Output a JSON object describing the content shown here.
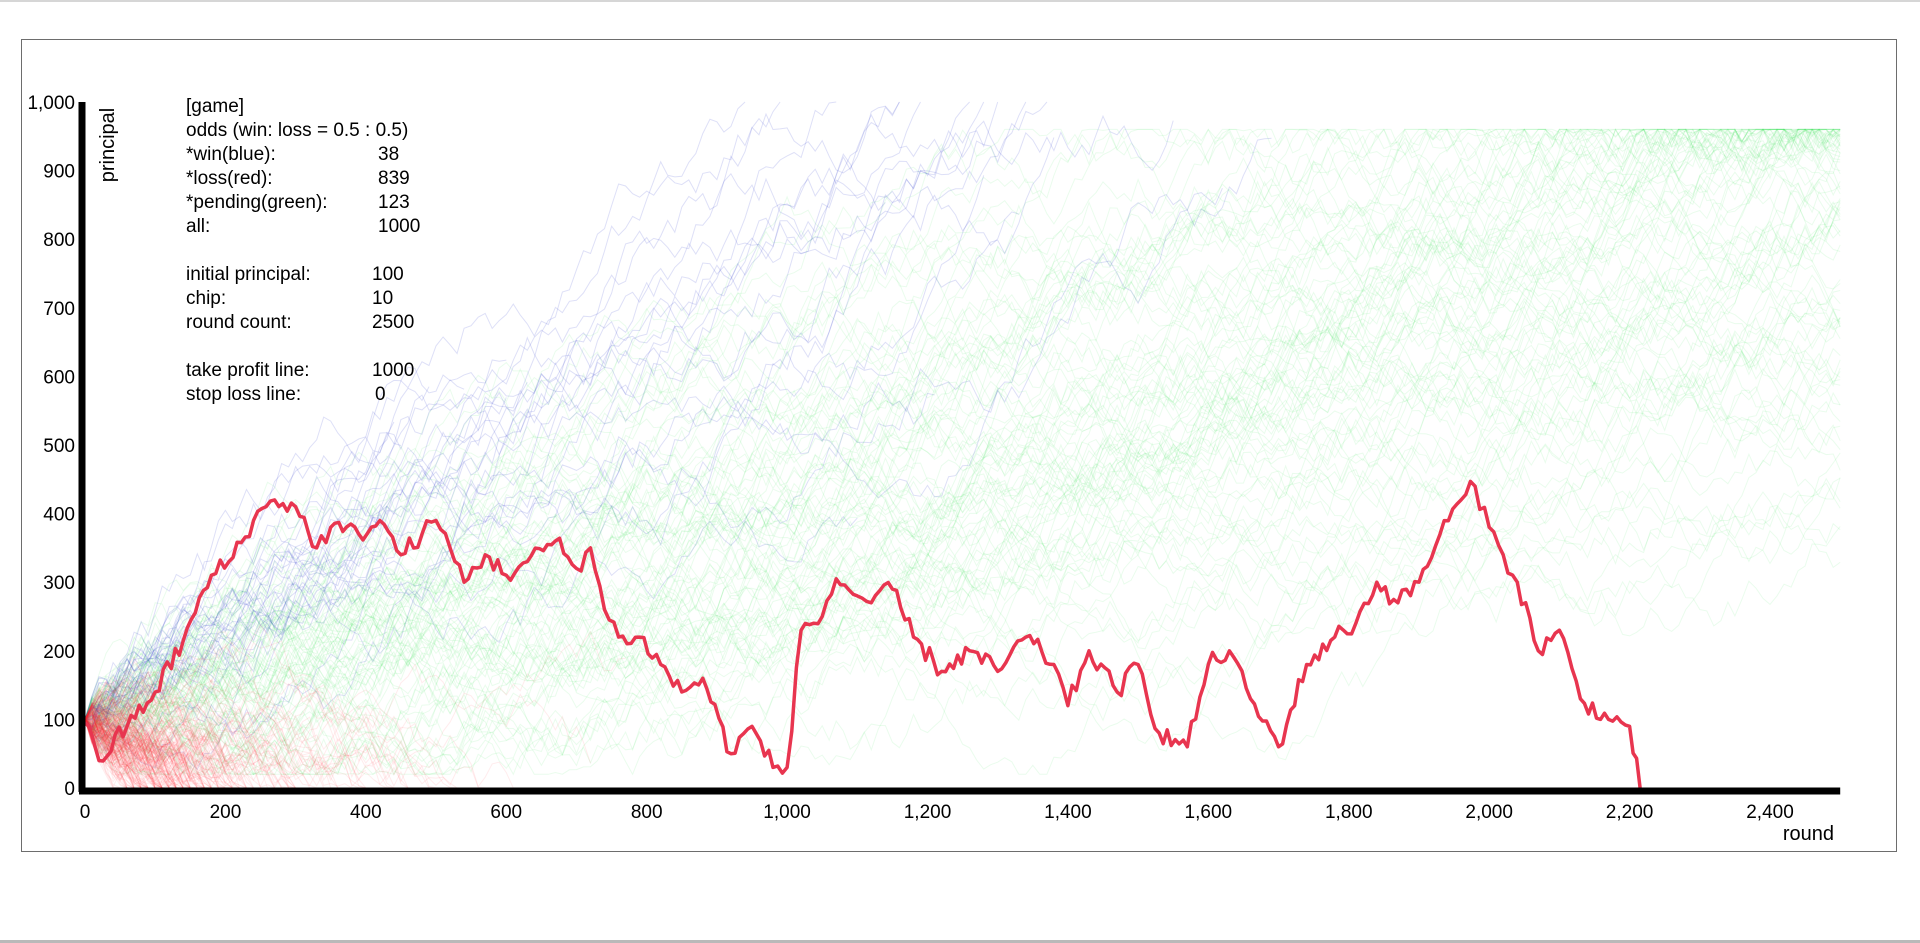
{
  "chart_data": {
    "type": "line",
    "xlabel": "round",
    "ylabel": "principal",
    "xlim": [
      0,
      2500
    ],
    "ylim": [
      0,
      1000
    ],
    "x_ticks": [
      "0",
      "200",
      "400",
      "600",
      "800",
      "1,000",
      "1,200",
      "1,400",
      "1,600",
      "1,800",
      "2,000",
      "2,200",
      "2,400"
    ],
    "y_ticks": [
      "0",
      "100",
      "200",
      "300",
      "400",
      "500",
      "600",
      "700",
      "800",
      "900",
      "1,000"
    ],
    "grid": false,
    "legend": "none",
    "colors": {
      "win": "#2f3fd0",
      "loss": "#ff2e3a",
      "pending": "#2ee04e",
      "highlight": "#e8354f",
      "axis": "#000000"
    },
    "series": [
      {
        "role": "highlight",
        "x": [
          0,
          20,
          60,
          100,
          140,
          180,
          205,
          240,
          270,
          300,
          330,
          350,
          390,
          420,
          450,
          480,
          500,
          520,
          540,
          570,
          600,
          630,
          670,
          700,
          720,
          740,
          760,
          790,
          820,
          850,
          880,
          920,
          950,
          980,
          1000,
          1020,
          1050,
          1070,
          1100,
          1120,
          1150,
          1180,
          1220,
          1260,
          1300,
          1340,
          1380,
          1400,
          1430,
          1470,
          1500,
          1530,
          1570,
          1600,
          1630,
          1660,
          1700,
          1740,
          1780,
          1810,
          1840,
          1870,
          1900,
          1930,
          1960,
          1980,
          2000,
          2020,
          2040,
          2070,
          2100,
          2130,
          2170,
          2200,
          2215
        ],
        "y": [
          95,
          40,
          90,
          140,
          215,
          310,
          330,
          390,
          420,
          410,
          350,
          380,
          370,
          390,
          340,
          370,
          390,
          350,
          300,
          340,
          310,
          330,
          360,
          320,
          350,
          260,
          220,
          220,
          180,
          140,
          160,
          50,
          90,
          30,
          30,
          230,
          250,
          305,
          280,
          270,
          290,
          220,
          170,
          200,
          170,
          220,
          180,
          120,
          200,
          140,
          180,
          80,
          60,
          180,
          200,
          130,
          60,
          180,
          220,
          240,
          300,
          270,
          300,
          370,
          420,
          440,
          380,
          340,
          300,
          200,
          230,
          130,
          100,
          90,
          0
        ]
      }
    ],
    "background_series_counts": {
      "win": 38,
      "loss": 839,
      "pending": 123
    }
  },
  "info": {
    "header": "[game]",
    "odds": "odds  (win: loss = 0.5 : 0.5)",
    "win_label": "*win(blue):",
    "win_value": "38",
    "loss_label": "*loss(red):",
    "loss_value": "839",
    "pending_label": "*pending(green):",
    "pending_value": "123",
    "all_label": "all:",
    "all_value": "1000",
    "initial_principal_label": "initial principal:",
    "initial_principal_value": "100",
    "chip_label": "chip:",
    "chip_value": "10",
    "round_count_label": "round count:",
    "round_count_value": "2500",
    "take_profit_label": "take profit line:",
    "take_profit_value": "1000",
    "stop_loss_label": "stop loss line:",
    "stop_loss_value": "0"
  }
}
